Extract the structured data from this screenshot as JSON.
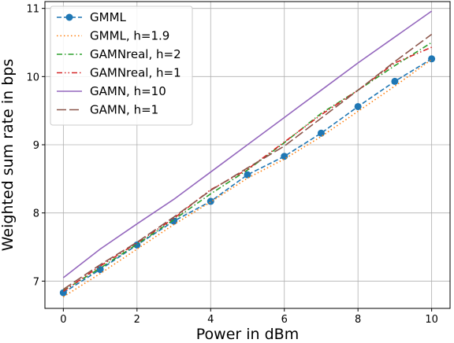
{
  "chart_data": {
    "type": "line",
    "title": "",
    "xlabel": "Power in dBm",
    "ylabel": "Weighted sum rate in bps",
    "xlim": [
      -0.5,
      10.5
    ],
    "ylim": [
      6.6,
      11.1
    ],
    "xticks": [
      0,
      2,
      4,
      6,
      8,
      10
    ],
    "yticks": [
      7,
      8,
      9,
      10,
      11
    ],
    "grid": true,
    "legend_position": "upper-left",
    "x": [
      0,
      1,
      2,
      3,
      4,
      5,
      6,
      7,
      8,
      9,
      10
    ],
    "series": [
      {
        "name": "GMML",
        "color": "#1f77b4",
        "linestyle": "dashed",
        "marker": "circle",
        "values": [
          6.83,
          7.17,
          7.53,
          7.88,
          8.17,
          8.56,
          8.83,
          9.17,
          9.56,
          9.93,
          10.26
        ]
      },
      {
        "name": "GMML, h=1.9",
        "color": "#ff7f0e",
        "linestyle": "dotted",
        "marker": "none",
        "values": [
          6.77,
          7.11,
          7.47,
          7.83,
          8.16,
          8.51,
          8.79,
          9.12,
          9.49,
          9.86,
          10.25
        ]
      },
      {
        "name": "GAMNreal, h=2",
        "color": "#2ca02c",
        "linestyle": "dashdot",
        "marker": "none",
        "values": [
          6.86,
          7.19,
          7.54,
          7.9,
          8.28,
          8.63,
          9.03,
          9.46,
          9.8,
          10.16,
          10.5
        ]
      },
      {
        "name": "GAMNreal, h=1",
        "color": "#d62728",
        "linestyle": "dashdotdot",
        "marker": "none",
        "values": [
          6.85,
          7.22,
          7.56,
          7.92,
          8.34,
          8.64,
          9.04,
          9.44,
          9.8,
          10.2,
          10.43
        ]
      },
      {
        "name": "GAMN, h=10",
        "color": "#9467bd",
        "linestyle": "solid",
        "marker": "none",
        "values": [
          7.05,
          7.47,
          7.84,
          8.2,
          8.6,
          9.0,
          9.4,
          9.8,
          10.2,
          10.58,
          10.96
        ]
      },
      {
        "name": "GAMN, h=1",
        "color": "#8c564b",
        "linestyle": "longdash",
        "marker": "none",
        "values": [
          6.88,
          7.24,
          7.57,
          7.94,
          8.33,
          8.66,
          8.98,
          9.39,
          9.8,
          10.22,
          10.62
        ]
      }
    ]
  }
}
